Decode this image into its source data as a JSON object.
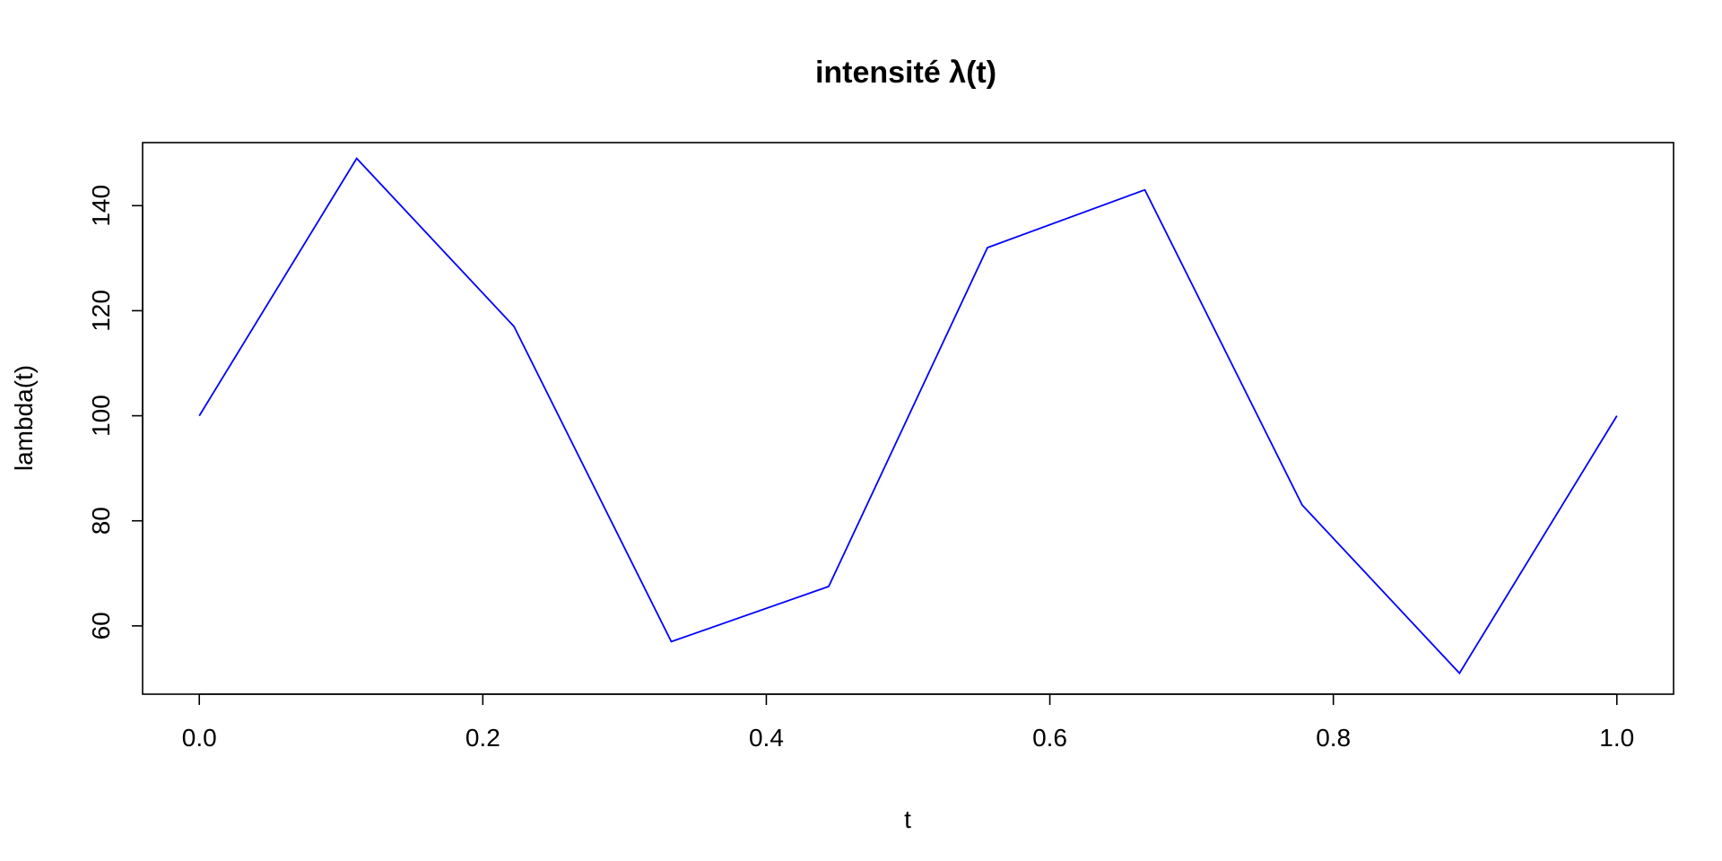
{
  "chart_data": {
    "type": "line",
    "title": "intensité λ(t)",
    "xlabel": "t",
    "ylabel": "lambda(t)",
    "xlim": [
      -0.04,
      1.04
    ],
    "ylim": [
      47,
      152
    ],
    "x_ticks": [
      0.0,
      0.2,
      0.4,
      0.6,
      0.8,
      1.0
    ],
    "x_tick_labels": [
      "0.0",
      "0.2",
      "0.4",
      "0.6",
      "0.8",
      "1.0"
    ],
    "y_ticks": [
      60,
      80,
      100,
      120,
      140
    ],
    "y_tick_labels": [
      "60",
      "80",
      "100",
      "120",
      "140"
    ],
    "grid": false,
    "legend": "none",
    "series": [
      {
        "color": "#0000ff",
        "x": [
          0.0,
          0.111,
          0.222,
          0.333,
          0.444,
          0.556,
          0.667,
          0.778,
          0.889,
          1.0
        ],
        "y": [
          100,
          149,
          117,
          57,
          67.5,
          132,
          143,
          83,
          51,
          100
        ]
      }
    ]
  }
}
